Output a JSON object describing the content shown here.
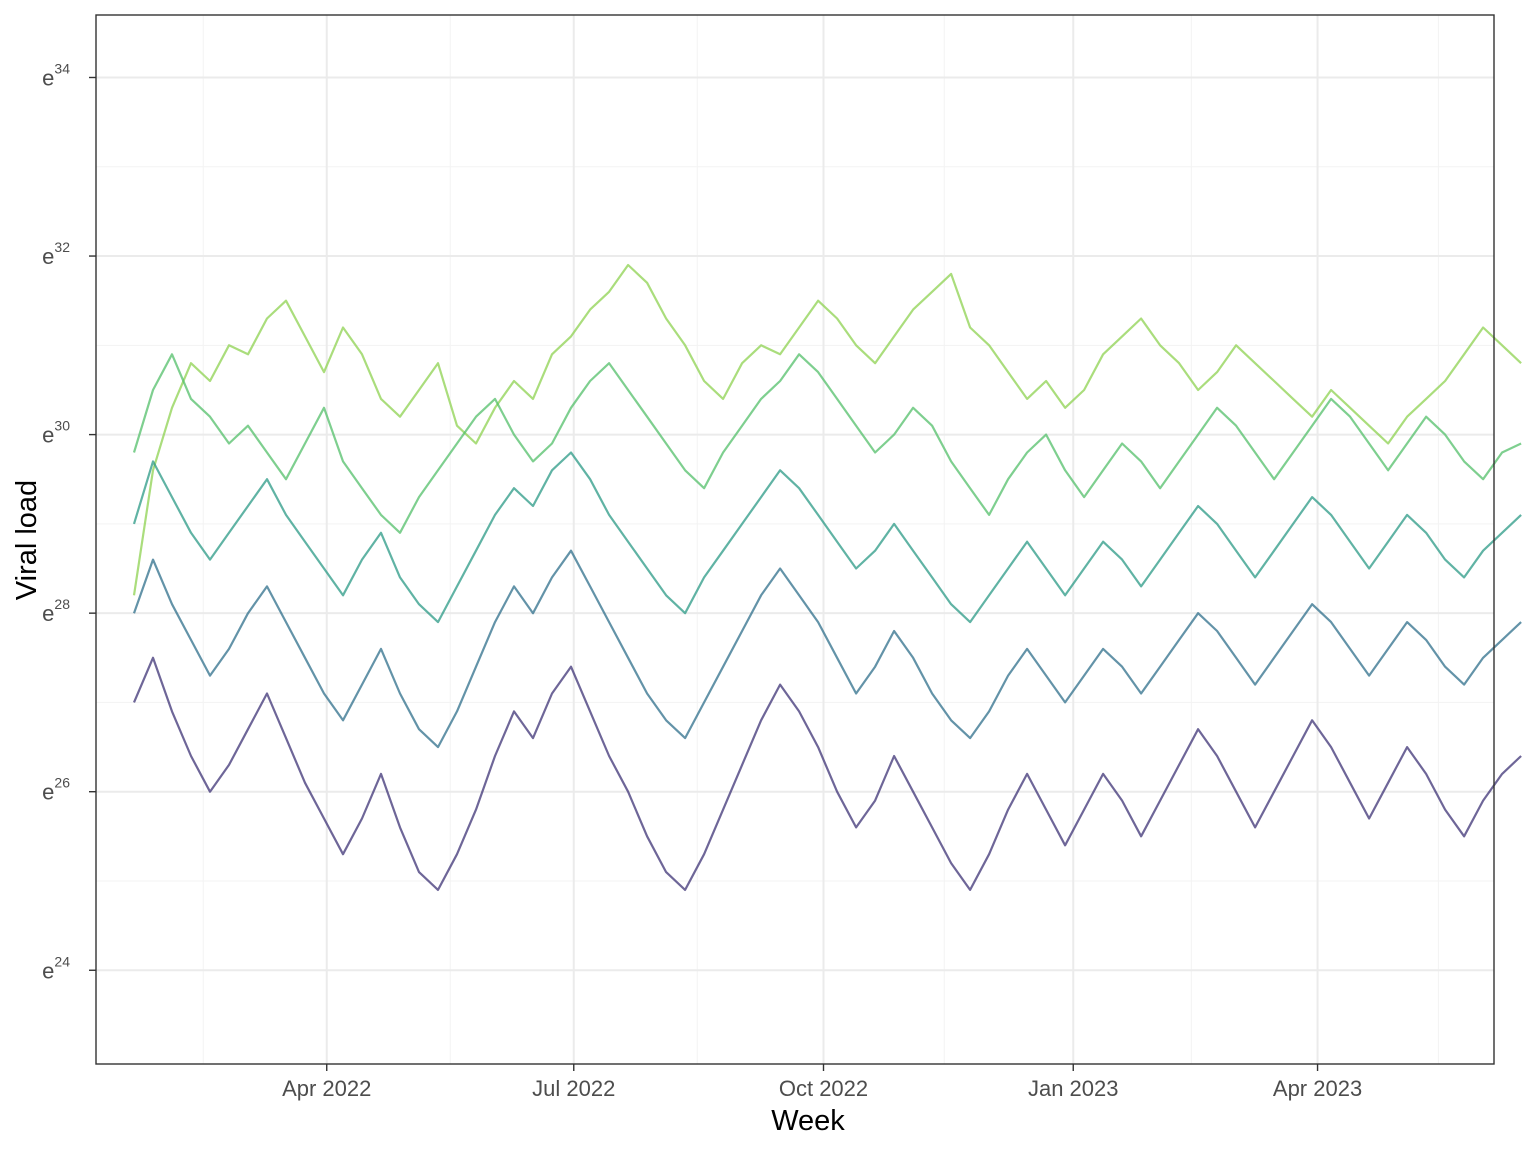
{
  "chart_data": {
    "type": "line",
    "title": "",
    "xlabel": "Week",
    "ylabel": "Viral load",
    "x_type": "date",
    "xlim": [
      "2022-01-06",
      "2023-06-05"
    ],
    "x_ticks": [
      {
        "date": "2022-04-01",
        "label": "Apr 2022"
      },
      {
        "date": "2022-07-01",
        "label": "Jul 2022"
      },
      {
        "date": "2022-10-01",
        "label": "Oct 2022"
      },
      {
        "date": "2023-01-01",
        "label": "Jan 2023"
      },
      {
        "date": "2023-04-01",
        "label": "Apr 2023"
      }
    ],
    "y_scale": "log (natural)",
    "ylim_log": [
      22.95,
      34.7
    ],
    "y_ticks": [
      {
        "base": "e",
        "exponent": "24",
        "value_log": 24
      },
      {
        "base": "e",
        "exponent": "26",
        "value_log": 26
      },
      {
        "base": "e",
        "exponent": "28",
        "value_log": 28
      },
      {
        "base": "e",
        "exponent": "30",
        "value_log": 30
      },
      {
        "base": "e",
        "exponent": "32",
        "value_log": 32
      },
      {
        "base": "e",
        "exponent": "34",
        "value_log": 34
      }
    ],
    "grid": true,
    "legend": "none",
    "series_note": "Many overlapping weekly series (one per sampling site); colour encodes typical level using the viridis scale.",
    "color_scale": [
      "#440154",
      "#3b528b",
      "#21918c",
      "#5ec962",
      "#fde725"
    ],
    "series": [
      {
        "x_start": "2022-01-20",
        "values": [
          28.2,
          29.6,
          30.3,
          30.8,
          30.6,
          31.0,
          30.9,
          31.3,
          31.5,
          31.1,
          30.7,
          31.2,
          30.9,
          30.4,
          30.2,
          30.5,
          30.8,
          30.1,
          29.9,
          30.3,
          30.6,
          30.4,
          30.9,
          31.1,
          31.4,
          31.6,
          31.9,
          31.7,
          31.3,
          31.0,
          30.6,
          30.4,
          30.8,
          31.0,
          30.9,
          31.2,
          31.5,
          31.3,
          31.0,
          30.8,
          31.1,
          31.4,
          31.6,
          31.8,
          31.2,
          31.0,
          30.7,
          30.4,
          30.6,
          30.3,
          30.5,
          30.9,
          31.1,
          31.3,
          31.0,
          30.8,
          30.5,
          30.7,
          31.0,
          30.8,
          30.6,
          30.4,
          30.2,
          30.5,
          30.3,
          30.1,
          29.9,
          30.2,
          30.4,
          30.6,
          30.9,
          31.2,
          31.0,
          30.8
        ]
      },
      {
        "x_start": "2022-01-20",
        "values": [
          29.8,
          30.5,
          30.9,
          30.4,
          30.2,
          29.9,
          30.1,
          29.8,
          29.5,
          29.9,
          30.3,
          29.7,
          29.4,
          29.1,
          28.9,
          29.3,
          29.6,
          29.9,
          30.2,
          30.4,
          30.0,
          29.7,
          29.9,
          30.3,
          30.6,
          30.8,
          30.5,
          30.2,
          29.9,
          29.6,
          29.4,
          29.8,
          30.1,
          30.4,
          30.6,
          30.9,
          30.7,
          30.4,
          30.1,
          29.8,
          30.0,
          30.3,
          30.1,
          29.7,
          29.4,
          29.1,
          29.5,
          29.8,
          30.0,
          29.6,
          29.3,
          29.6,
          29.9,
          29.7,
          29.4,
          29.7,
          30.0,
          30.3,
          30.1,
          29.8,
          29.5,
          29.8,
          30.1,
          30.4,
          30.2,
          29.9,
          29.6,
          29.9,
          30.2,
          30.0,
          29.7,
          29.5,
          29.8,
          29.9
        ]
      },
      {
        "x_start": "2022-01-20",
        "values": [
          29.0,
          29.7,
          29.3,
          28.9,
          28.6,
          28.9,
          29.2,
          29.5,
          29.1,
          28.8,
          28.5,
          28.2,
          28.6,
          28.9,
          28.4,
          28.1,
          27.9,
          28.3,
          28.7,
          29.1,
          29.4,
          29.2,
          29.6,
          29.8,
          29.5,
          29.1,
          28.8,
          28.5,
          28.2,
          28.0,
          28.4,
          28.7,
          29.0,
          29.3,
          29.6,
          29.4,
          29.1,
          28.8,
          28.5,
          28.7,
          29.0,
          28.7,
          28.4,
          28.1,
          27.9,
          28.2,
          28.5,
          28.8,
          28.5,
          28.2,
          28.5,
          28.8,
          28.6,
          28.3,
          28.6,
          28.9,
          29.2,
          29.0,
          28.7,
          28.4,
          28.7,
          29.0,
          29.3,
          29.1,
          28.8,
          28.5,
          28.8,
          29.1,
          28.9,
          28.6,
          28.4,
          28.7,
          28.9,
          29.1
        ]
      },
      {
        "x_start": "2022-01-20",
        "values": [
          28.0,
          28.6,
          28.1,
          27.7,
          27.3,
          27.6,
          28.0,
          28.3,
          27.9,
          27.5,
          27.1,
          26.8,
          27.2,
          27.6,
          27.1,
          26.7,
          26.5,
          26.9,
          27.4,
          27.9,
          28.3,
          28.0,
          28.4,
          28.7,
          28.3,
          27.9,
          27.5,
          27.1,
          26.8,
          26.6,
          27.0,
          27.4,
          27.8,
          28.2,
          28.5,
          28.2,
          27.9,
          27.5,
          27.1,
          27.4,
          27.8,
          27.5,
          27.1,
          26.8,
          26.6,
          26.9,
          27.3,
          27.6,
          27.3,
          27.0,
          27.3,
          27.6,
          27.4,
          27.1,
          27.4,
          27.7,
          28.0,
          27.8,
          27.5,
          27.2,
          27.5,
          27.8,
          28.1,
          27.9,
          27.6,
          27.3,
          27.6,
          27.9,
          27.7,
          27.4,
          27.2,
          27.5,
          27.7,
          27.9
        ]
      },
      {
        "x_start": "2022-01-20",
        "values": [
          27.0,
          27.5,
          26.9,
          26.4,
          26.0,
          26.3,
          26.7,
          27.1,
          26.6,
          26.1,
          25.7,
          25.3,
          25.7,
          26.2,
          25.6,
          25.1,
          24.9,
          25.3,
          25.8,
          26.4,
          26.9,
          26.6,
          27.1,
          27.4,
          26.9,
          26.4,
          26.0,
          25.5,
          25.1,
          24.9,
          25.3,
          25.8,
          26.3,
          26.8,
          27.2,
          26.9,
          26.5,
          26.0,
          25.6,
          25.9,
          26.4,
          26.0,
          25.6,
          25.2,
          24.9,
          25.3,
          25.8,
          26.2,
          25.8,
          25.4,
          25.8,
          26.2,
          25.9,
          25.5,
          25.9,
          26.3,
          26.7,
          26.4,
          26.0,
          25.6,
          26.0,
          26.4,
          26.8,
          26.5,
          26.1,
          25.7,
          26.1,
          26.5,
          26.2,
          25.8,
          25.5,
          25.9,
          26.2,
          26.4
        ]
      }
    ]
  }
}
